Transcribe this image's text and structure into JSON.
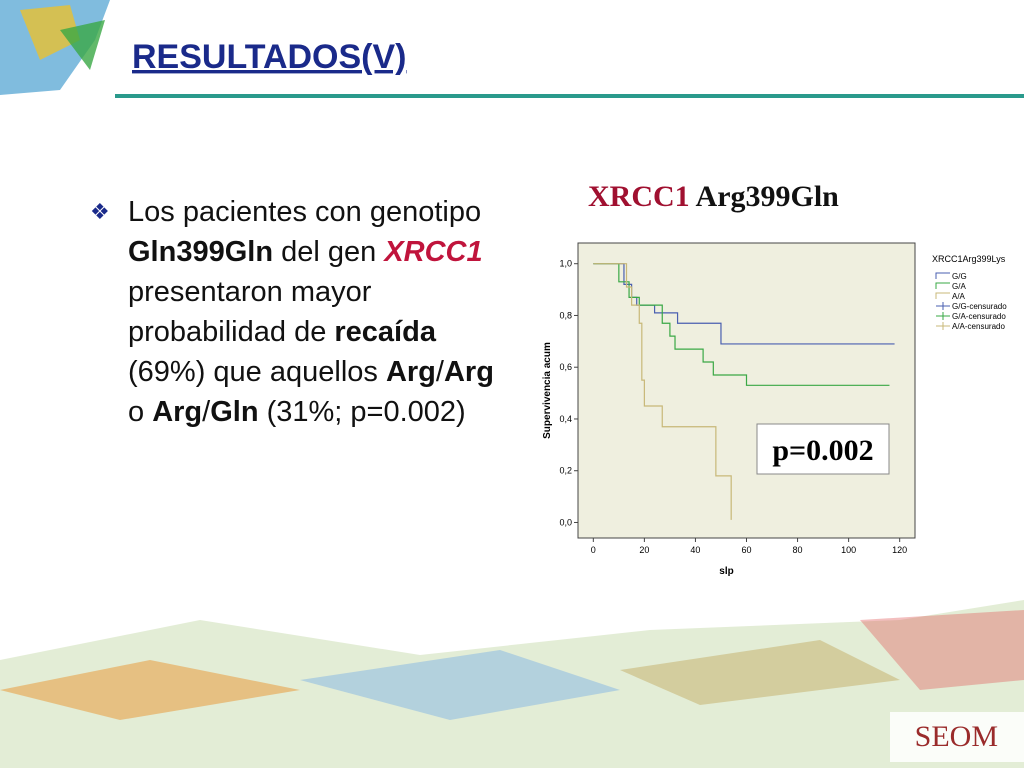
{
  "header": {
    "title": "RESULTADOS(V)"
  },
  "bullet": {
    "marker": "❖",
    "segments": [
      {
        "text": "Los pacientes con genotipo "
      },
      {
        "text": "Gln399Gln",
        "bold": true
      },
      {
        "text": " del gen "
      },
      {
        "text": "XRCC1",
        "bold": true,
        "italic": true,
        "color": "#c0143c"
      },
      {
        "text": " presentaron mayor probabilidad de "
      },
      {
        "text": "recaída",
        "bold": true
      },
      {
        "text": " (69%) que aquellos "
      },
      {
        "text": "Arg",
        "bold": true
      },
      {
        "text": "/"
      },
      {
        "text": "Arg",
        "bold": true
      },
      {
        "text": " o "
      },
      {
        "text": "Arg",
        "bold": true
      },
      {
        "text": "/"
      },
      {
        "text": "Gln",
        "bold": true
      },
      {
        "text": " (31%; p=0.002)"
      }
    ]
  },
  "chart_heading": {
    "gene": "XRCC1",
    "variant": "Arg399Gln"
  },
  "annotation": "p=0.002",
  "footer": {
    "logo": "SEOM"
  },
  "chart_data": {
    "type": "line",
    "x_label": "slp",
    "y_label": "Supervivencia acum",
    "legend_title": "XRCC1Arg399Lys",
    "legend_extra": [
      "G/G-censurado",
      "G/A-censurado",
      "A/A-censurado"
    ],
    "xlim": [
      -6,
      126
    ],
    "ylim": [
      -0.06,
      1.08
    ],
    "xticks": [
      0,
      20,
      40,
      60,
      80,
      100,
      120
    ],
    "yticks": [
      {
        "value": 0,
        "label": "0,0"
      },
      {
        "value": 0.2,
        "label": "0,2"
      },
      {
        "value": 0.4,
        "label": "0,4"
      },
      {
        "value": 0.6,
        "label": "0,6"
      },
      {
        "value": 0.8,
        "label": "0,8"
      },
      {
        "value": 1.0,
        "label": "1,0"
      }
    ],
    "series": [
      {
        "name": "G/G",
        "color": "#4a5fb0",
        "x": [
          0,
          12,
          12,
          15,
          15,
          17,
          17,
          24,
          24,
          33,
          33,
          50,
          50,
          118
        ],
        "values": [
          1.0,
          1.0,
          0.92,
          0.92,
          0.87,
          0.87,
          0.84,
          0.84,
          0.81,
          0.81,
          0.77,
          0.77,
          0.69,
          0.69
        ]
      },
      {
        "name": "G/A",
        "color": "#3aa845",
        "x": [
          0,
          10,
          10,
          14,
          14,
          18,
          18,
          27,
          27,
          30,
          30,
          32,
          32,
          43,
          43,
          47,
          47,
          60,
          60,
          116
        ],
        "values": [
          1.0,
          1.0,
          0.93,
          0.93,
          0.87,
          0.87,
          0.84,
          0.84,
          0.77,
          0.77,
          0.72,
          0.72,
          0.67,
          0.67,
          0.62,
          0.62,
          0.57,
          0.57,
          0.53,
          0.53
        ]
      },
      {
        "name": "A/A",
        "color": "#c8b878",
        "x": [
          0,
          13,
          13,
          15,
          15,
          18,
          18,
          19,
          19,
          20,
          20,
          27,
          27,
          48,
          48,
          54,
          54
        ],
        "values": [
          1.0,
          1.0,
          0.91,
          0.91,
          0.84,
          0.84,
          0.77,
          0.77,
          0.55,
          0.55,
          0.45,
          0.45,
          0.37,
          0.37,
          0.18,
          0.18,
          0.01
        ]
      }
    ]
  }
}
